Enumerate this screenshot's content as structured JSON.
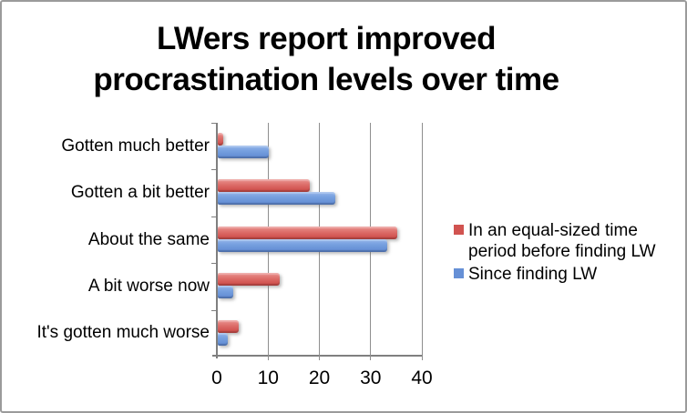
{
  "chart_data": {
    "type": "bar",
    "orientation": "horizontal",
    "title_lines": [
      "LWers report improved",
      "procrastination levels over time"
    ],
    "categories": [
      "Gotten much better",
      "Gotten a bit better",
      "About the same",
      "A bit worse now",
      "It's gotten much worse"
    ],
    "series": [
      {
        "name": "In an equal-sized time period before finding LW",
        "color": "#d15350",
        "values": [
          1,
          18,
          35,
          12,
          4
        ]
      },
      {
        "name": "Since finding LW",
        "color": "#6690d6",
        "values": [
          10,
          23,
          33,
          3,
          2
        ]
      }
    ],
    "xlim": [
      0,
      40
    ],
    "xticks": [
      0,
      10,
      20,
      30,
      40
    ],
    "grid": true,
    "legend_position": "right",
    "colors": {
      "axis": "#7f7f7f",
      "gridline": "#8e8e8e",
      "frame_border": "#9b9b9b",
      "background": "#ffffff",
      "text": "#000000"
    }
  }
}
